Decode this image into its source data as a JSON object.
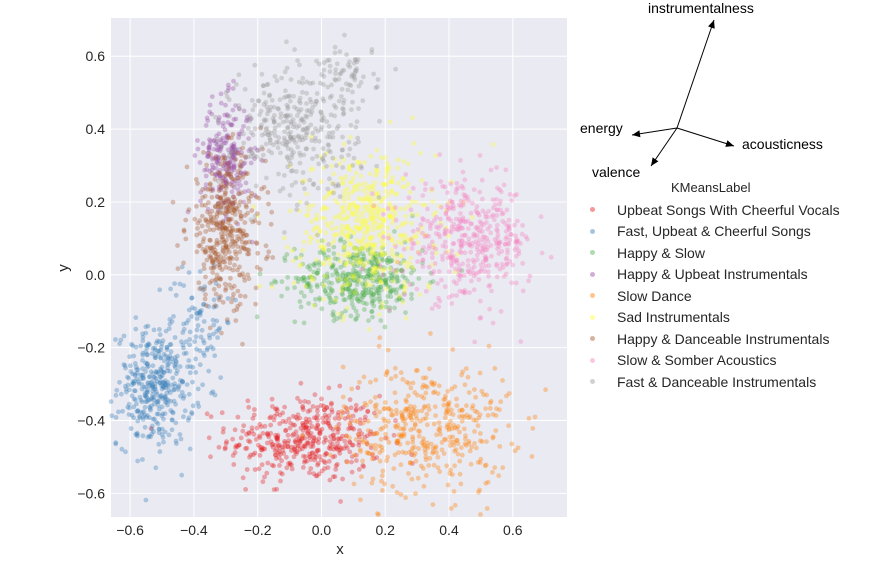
{
  "chart_data": {
    "type": "scatter",
    "xlabel": "x",
    "ylabel": "y",
    "xlim": [
      -0.66,
      0.77
    ],
    "ylim": [
      -0.665,
      0.705
    ],
    "xticks": [
      "−0.6",
      "−0.4",
      "−0.2",
      "0.0",
      "0.2",
      "0.4",
      "0.6"
    ],
    "xtick_values": [
      -0.6,
      -0.4,
      -0.2,
      0.0,
      0.2,
      0.4,
      0.6
    ],
    "yticks": [
      "0.6",
      "0.4",
      "0.2",
      "0.0",
      "−0.2",
      "−0.4",
      "−0.6"
    ],
    "ytick_values": [
      0.6,
      0.4,
      0.2,
      0.0,
      -0.2,
      -0.4,
      -0.6
    ],
    "grid": true,
    "background": "#eaeaf2",
    "legend_title": "KMeansLabel",
    "legend_placement": "right",
    "series": [
      {
        "name": "Upbeat Songs With Cheerful Vocals",
        "color": "#e41a1c",
        "clusters": [
          {
            "cx": -0.05,
            "cy": -0.45,
            "sx": 0.12,
            "sy": 0.06,
            "n": 430
          }
        ]
      },
      {
        "name": "Fast, Upbeat & Cheerful Songs",
        "color": "#377eb8",
        "clusters": [
          {
            "cx": -0.52,
            "cy": -0.31,
            "sx": 0.06,
            "sy": 0.08,
            "n": 380
          },
          {
            "cx": -0.38,
            "cy": -0.12,
            "sx": 0.05,
            "sy": 0.08,
            "n": 80
          }
        ]
      },
      {
        "name": "Happy & Slow",
        "color": "#4daf4a",
        "clusters": [
          {
            "cx": 0.12,
            "cy": -0.01,
            "sx": 0.1,
            "sy": 0.05,
            "n": 420
          }
        ]
      },
      {
        "name": "Happy & Upbeat Instrumentals",
        "color": "#984ea3",
        "clusters": [
          {
            "cx": -0.3,
            "cy": 0.32,
            "sx": 0.04,
            "sy": 0.08,
            "n": 240
          }
        ]
      },
      {
        "name": "Slow Dance",
        "color": "#ff7f00",
        "clusters": [
          {
            "cx": 0.33,
            "cy": -0.42,
            "sx": 0.13,
            "sy": 0.09,
            "n": 420
          }
        ]
      },
      {
        "name": "Sad Instrumentals",
        "color": "#ffff33",
        "clusters": [
          {
            "cx": 0.14,
            "cy": 0.14,
            "sx": 0.11,
            "sy": 0.1,
            "n": 520
          }
        ]
      },
      {
        "name": "Happy & Danceable Instrumentals",
        "color": "#a65628",
        "clusters": [
          {
            "cx": -0.3,
            "cy": 0.12,
            "sx": 0.06,
            "sy": 0.1,
            "n": 400
          }
        ]
      },
      {
        "name": "Slow & Somber Acoustics",
        "color": "#f781bf",
        "clusters": [
          {
            "cx": 0.46,
            "cy": 0.09,
            "sx": 0.1,
            "sy": 0.08,
            "n": 420
          }
        ]
      },
      {
        "name": "Fast & Danceable Instrumentals",
        "color": "#999999",
        "clusters": [
          {
            "cx": -0.08,
            "cy": 0.4,
            "sx": 0.1,
            "sy": 0.09,
            "n": 340
          },
          {
            "cx": 0.08,
            "cy": 0.55,
            "sx": 0.05,
            "sy": 0.04,
            "n": 60
          }
        ]
      }
    ],
    "biplot": {
      "labels": [
        "instrumentalness",
        "energy",
        "acousticness",
        "valence"
      ]
    }
  }
}
